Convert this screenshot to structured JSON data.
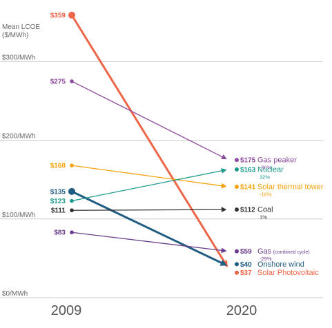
{
  "chart_data": {
    "type": "line",
    "ylabel": [
      "Mean LCOE",
      "($/MWh)"
    ],
    "ylim": [
      0,
      359
    ],
    "yticks": [
      {
        "value": 0,
        "label": "$0/MWh"
      },
      {
        "value": 100,
        "label": "$100/MWh"
      },
      {
        "value": 200,
        "label": "$200/MWh"
      },
      {
        "value": 300,
        "label": "$300/MWh"
      }
    ],
    "x": [
      "2009",
      "2020"
    ],
    "series": [
      {
        "name": "Solar Photovoltaic",
        "note": "",
        "change": "",
        "color": "#EF6548",
        "values": [
          359,
          37
        ],
        "labels": [
          "$359",
          "$37"
        ]
      },
      {
        "name": "Gas peaker",
        "note": "",
        "change": "-36%",
        "color": "#8E4BA0",
        "values": [
          275,
          175
        ],
        "labels": [
          "$275",
          "$175"
        ]
      },
      {
        "name": "Solar thermal tower",
        "note": "",
        "change": "-16%",
        "color": "#F5A20A",
        "values": [
          168,
          141
        ],
        "labels": [
          "$168",
          "$141"
        ]
      },
      {
        "name": "Onshore wind",
        "note": "",
        "change": "",
        "color": "#1F5C82",
        "values": [
          135,
          40
        ],
        "labels": [
          "$135",
          "$40"
        ]
      },
      {
        "name": "Nuclear",
        "note": "",
        "change": "32%",
        "color": "#1A9A8A",
        "values": [
          123,
          163
        ],
        "labels": [
          "$123",
          "$163"
        ]
      },
      {
        "name": "Coal",
        "note": "",
        "change": "1%",
        "color": "#333333",
        "values": [
          111,
          112
        ],
        "labels": [
          "$111",
          "$112"
        ]
      },
      {
        "name": "Gas",
        "note": "(combined cycle)",
        "change": "-29%",
        "color": "#6A3D8C",
        "values": [
          83,
          59
        ],
        "labels": [
          "$83",
          "$59"
        ]
      }
    ]
  }
}
